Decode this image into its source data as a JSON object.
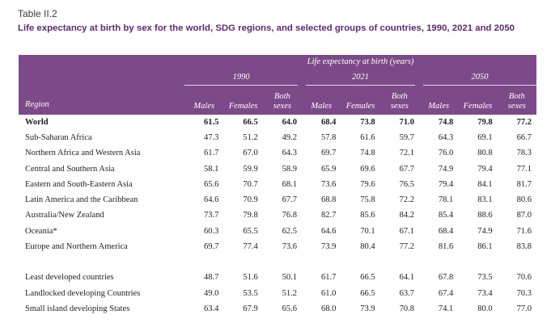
{
  "table_label": "Table II.2",
  "title": "Life expectancy at birth by sex for the world, SDG regions, and selected groups of countries, 1990, 2021 and 2050",
  "header": {
    "group_label": "Life expectancy at birth (years)",
    "years": [
      "1990",
      "2021",
      "2050"
    ],
    "region_col": "Region",
    "males": "Males",
    "females": "Females",
    "both_1": "Both",
    "both_2": "sexes"
  },
  "rows": [
    {
      "region": "World",
      "values": [
        "61.5",
        "66.5",
        "64.0",
        "68.4",
        "73.8",
        "71.0",
        "74.8",
        "79.8",
        "77.2"
      ]
    },
    {
      "region": "Sub-Saharan Africa",
      "values": [
        "47.3",
        "51.2",
        "49.2",
        "57.8",
        "61.6",
        "59.7",
        "64.3",
        "69.1",
        "66.7"
      ]
    },
    {
      "region": "Northern Africa and Western Asia",
      "values": [
        "61.7",
        "67.0",
        "64.3",
        "69.7",
        "74.8",
        "72.1",
        "76.0",
        "80.8",
        "78.3"
      ]
    },
    {
      "region": "Central and Southern Asia",
      "values": [
        "58.1",
        "59.9",
        "58.9",
        "65.9",
        "69.6",
        "67.7",
        "74.9",
        "79.4",
        "77.1"
      ]
    },
    {
      "region": "Eastern and South-Eastern Asia",
      "values": [
        "65.6",
        "70.7",
        "68.1",
        "73.6",
        "79.6",
        "76.5",
        "79.4",
        "84.1",
        "81.7"
      ]
    },
    {
      "region": "Latin America and the Caribbean",
      "values": [
        "64.6",
        "70.9",
        "67.7",
        "68.8",
        "75.8",
        "72.2",
        "78.1",
        "83.1",
        "80.6"
      ]
    },
    {
      "region": "Australia/New Zealand",
      "values": [
        "73.7",
        "79.8",
        "76.8",
        "82.7",
        "85.6",
        "84.2",
        "85.4",
        "88.6",
        "87.0"
      ]
    },
    {
      "region": "Oceania*",
      "values": [
        "60.3",
        "65.5",
        "62.5",
        "64.6",
        "70.1",
        "67.1",
        "68.4",
        "74.9",
        "71.6"
      ]
    },
    {
      "region": "Europe and Northern America",
      "values": [
        "69.7",
        "77.4",
        "73.6",
        "73.9",
        "80.4",
        "77.2",
        "81.6",
        "86.1",
        "83.8"
      ]
    }
  ],
  "rows2": [
    {
      "region": "Least developed countries",
      "values": [
        "48.7",
        "51.6",
        "50.1",
        "61.7",
        "66.5",
        "64.1",
        "67.8",
        "73.5",
        "70.6"
      ]
    },
    {
      "region": "Landlocked developing Countries",
      "values": [
        "49.0",
        "53.5",
        "51.2",
        "61.0",
        "66.5",
        "63.7",
        "67.4",
        "73.4",
        "70.3"
      ]
    },
    {
      "region": "Small island developing States",
      "values": [
        "63.4",
        "67.9",
        "65.6",
        "68.0",
        "73.9",
        "70.8",
        "74.1",
        "80.0",
        "77.0"
      ]
    }
  ]
}
